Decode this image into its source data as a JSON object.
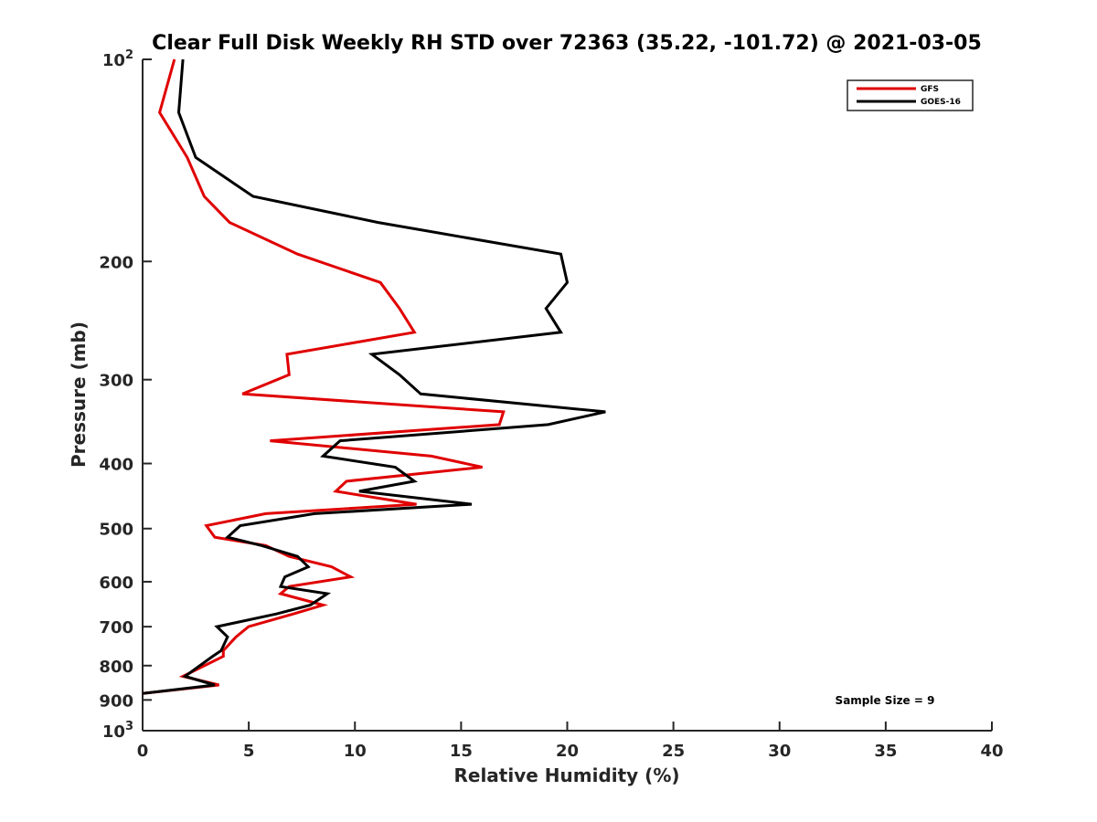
{
  "chart_data": {
    "type": "line",
    "title": "Clear Full Disk Weekly RH STD over 72363 (35.22, -101.72) @ 2021-03-05",
    "xlabel": "Relative Humidity (%)",
    "ylabel": "Pressure (mb)",
    "xlim": [
      0,
      40
    ],
    "ylim": [
      100,
      1000
    ],
    "yscale": "log",
    "yreversed": true,
    "grid": false,
    "legend_position": "top-right",
    "x_ticks": [
      0,
      5,
      10,
      15,
      20,
      25,
      30,
      35,
      40
    ],
    "x_tick_labels": [
      "0",
      "5",
      "10",
      "15",
      "20",
      "25",
      "30",
      "35",
      "40"
    ],
    "y_ticks": [
      100,
      200,
      300,
      400,
      500,
      600,
      700,
      800,
      900,
      1000
    ],
    "y_tick_labels": [
      {
        "base": "10",
        "exp": "2"
      },
      {
        "text": "200"
      },
      {
        "text": "300"
      },
      {
        "text": "400"
      },
      {
        "text": "500"
      },
      {
        "text": "600"
      },
      {
        "text": "700"
      },
      {
        "text": "800"
      },
      {
        "text": "900"
      },
      {
        "base": "10",
        "exp": "3"
      }
    ],
    "annotation": "Sample Size = 9",
    "series": [
      {
        "name": "GFS",
        "color": "#e00000",
        "pressure": [
          100,
          120,
          140,
          160,
          175,
          195,
          215,
          235,
          255,
          275,
          295,
          315,
          335,
          350,
          370,
          390,
          405,
          425,
          440,
          460,
          475,
          495,
          515,
          530,
          550,
          570,
          590,
          610,
          625,
          650,
          670,
          700,
          725,
          760,
          775,
          830,
          855,
          880
        ],
        "rh": [
          1.5,
          0.8,
          2.1,
          2.9,
          4.1,
          7.3,
          11.2,
          12.1,
          12.8,
          6.8,
          6.9,
          4.7,
          17.0,
          16.8,
          6.0,
          13.6,
          16.0,
          9.6,
          9.1,
          12.9,
          5.8,
          3.0,
          3.4,
          5.8,
          6.9,
          8.9,
          9.8,
          6.9,
          6.5,
          8.5,
          7.1,
          4.99,
          4.4,
          3.8,
          3.8,
          1.9,
          3.6,
          0.0
        ]
      },
      {
        "name": "GOES-16",
        "color": "#000000",
        "pressure": [
          100,
          120,
          140,
          160,
          175,
          195,
          215,
          235,
          255,
          275,
          295,
          315,
          335,
          350,
          370,
          390,
          405,
          425,
          440,
          460,
          475,
          495,
          515,
          530,
          550,
          570,
          590,
          610,
          625,
          650,
          670,
          700,
          725,
          760,
          775,
          830,
          855,
          880
        ],
        "rh": [
          1.9,
          1.7,
          2.5,
          5.2,
          11.1,
          19.7,
          20.0,
          19.0,
          19.7,
          10.8,
          12.1,
          13.1,
          21.8,
          19.1,
          9.3,
          8.5,
          11.9,
          12.8,
          10.2,
          15.5,
          8.1,
          4.6,
          4.0,
          5.6,
          7.3,
          7.8,
          6.7,
          6.5,
          8.7,
          7.9,
          6.3,
          3.5,
          4.0,
          3.7,
          3.3,
          2.0,
          3.4,
          0.0
        ]
      }
    ]
  }
}
